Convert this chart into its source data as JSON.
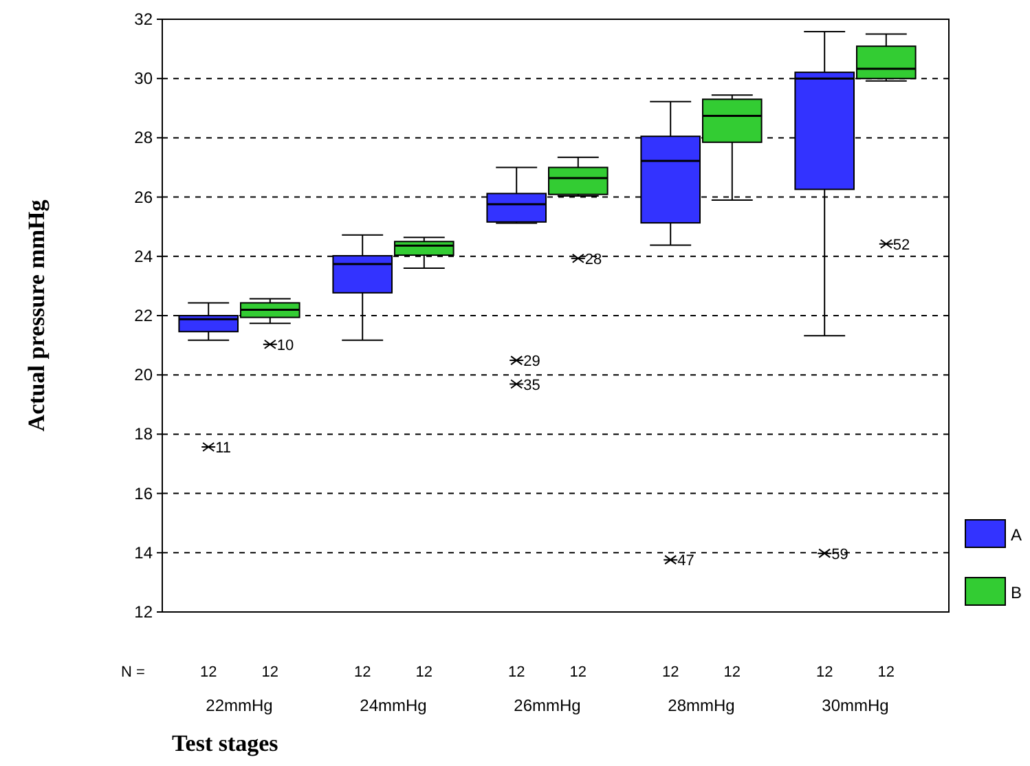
{
  "chart_data": {
    "type": "box",
    "xlabel": "Test stages",
    "ylabel": "Actual pressure mmHg",
    "categories": [
      "22mmHg",
      "24mmHg",
      "26mmHg",
      "28mmHg",
      "30mmHg"
    ],
    "ylim": [
      12,
      32
    ],
    "yticks": [
      12,
      14,
      16,
      18,
      20,
      22,
      24,
      26,
      28,
      30,
      32
    ],
    "grid": "y",
    "legend": "right",
    "series": [
      {
        "name": "A",
        "color": "#3333ff",
        "boxes": [
          {
            "low": 21.17,
            "q1": 21.46,
            "median": 21.88,
            "q3": 22.0,
            "high": 22.43,
            "outliers": [
              17.57
            ]
          },
          {
            "low": 21.17,
            "q1": 22.77,
            "median": 23.74,
            "q3": 24.02,
            "high": 24.72
          },
          {
            "low": 25.12,
            "q1": 25.16,
            "median": 25.76,
            "q3": 26.12,
            "high": 27.0,
            "outliers": [
              20.49,
              19.69
            ]
          },
          {
            "low": 24.38,
            "q1": 25.13,
            "median": 27.22,
            "q3": 28.05,
            "high": 29.22,
            "outliers": [
              13.76
            ]
          },
          {
            "low": 21.32,
            "q1": 26.26,
            "median": 30.0,
            "q3": 30.21,
            "high": 31.58,
            "outliers": [
              13.98
            ]
          }
        ]
      },
      {
        "name": "B",
        "color": "#33cc33",
        "boxes": [
          {
            "low": 21.74,
            "q1": 21.94,
            "median": 22.2,
            "q3": 22.43,
            "high": 22.57,
            "outliers": [
              21.03
            ]
          },
          {
            "low": 23.6,
            "q1": 24.04,
            "median": 24.36,
            "q3": 24.5,
            "high": 24.64
          },
          {
            "low": 26.04,
            "q1": 26.09,
            "median": 26.64,
            "q3": 27.0,
            "high": 27.34,
            "outliers": [
              23.93
            ]
          },
          {
            "low": 25.9,
            "q1": 27.85,
            "median": 28.74,
            "q3": 29.3,
            "high": 29.44
          },
          {
            "low": 29.92,
            "q1": 30.0,
            "median": 30.33,
            "q3": 31.09,
            "high": 31.5,
            "outliers": [
              24.42
            ]
          }
        ]
      }
    ],
    "annotations": [
      "N =",
      "12",
      "12",
      "12",
      "12",
      "12",
      "12",
      "12",
      "12",
      "12",
      "12",
      "11",
      "29",
      "35",
      "47",
      "59",
      "10",
      "28",
      "52"
    ]
  }
}
